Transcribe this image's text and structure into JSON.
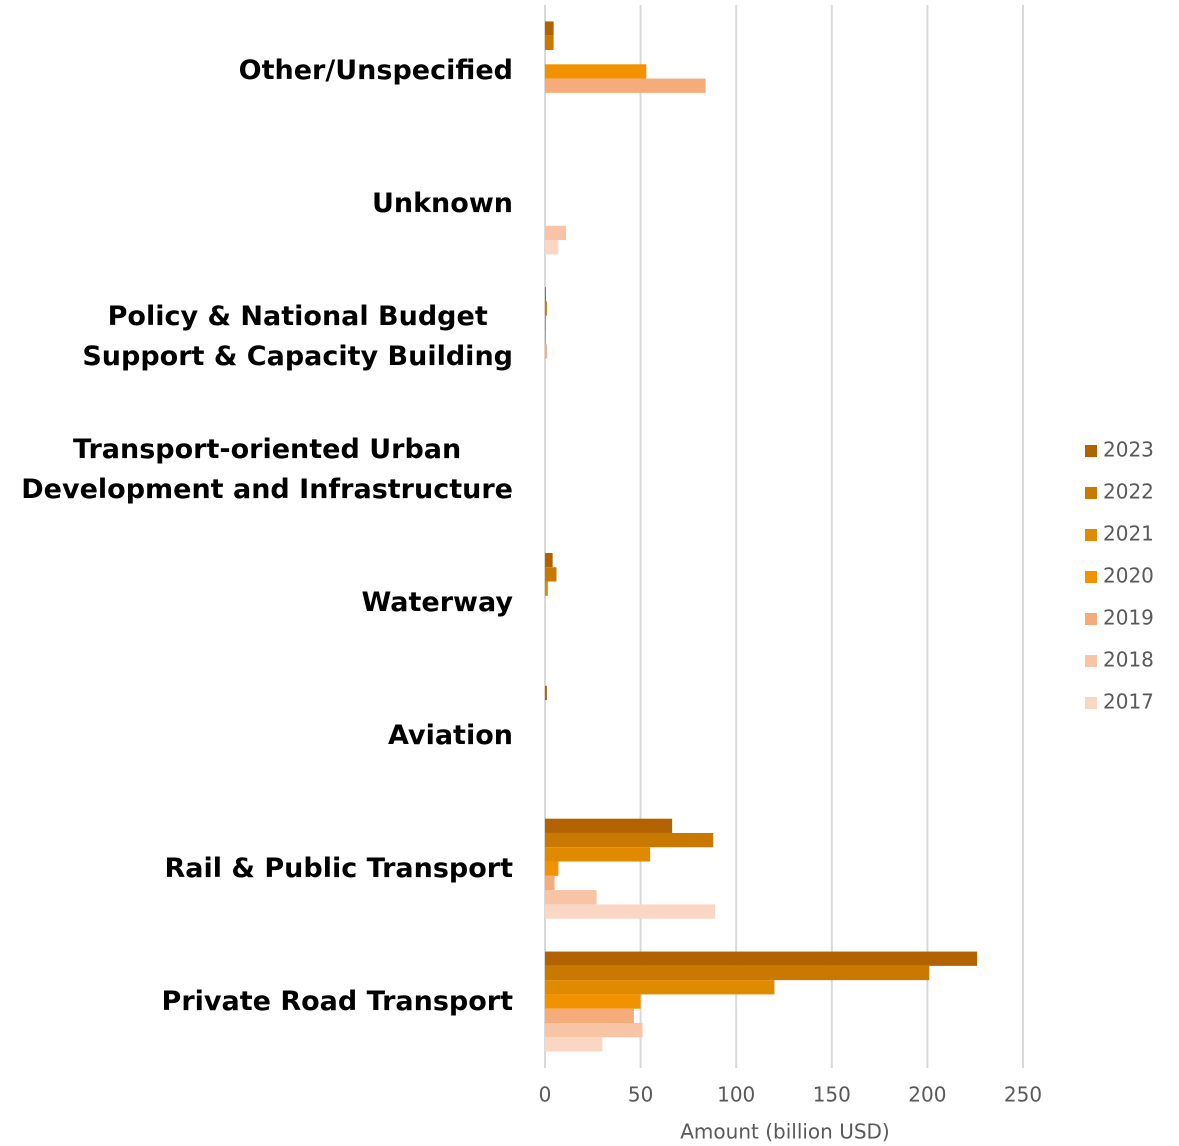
{
  "chart_data": {
    "type": "bar",
    "orientation": "horizontal",
    "categories": [
      "Other/Unspecified",
      "Unknown",
      "Policy & National Budget\nSupport & Capacity Building",
      "Transport-oriented Urban\nDevelopment and Infrastructure",
      "Waterway",
      "Aviation",
      "Rail & Public Transport",
      "Private Road Transport"
    ],
    "series": [
      {
        "name": "2023",
        "color": "#b36200",
        "values": [
          4.5,
          0,
          0.5,
          0,
          4,
          1,
          66.5,
          226
        ]
      },
      {
        "name": "2022",
        "color": "#c97800",
        "values": [
          4.5,
          0,
          1,
          0,
          6,
          0,
          88,
          201
        ]
      },
      {
        "name": "2021",
        "color": "#e08a00",
        "values": [
          0,
          0,
          0.5,
          0,
          1.5,
          0,
          55,
          120
        ]
      },
      {
        "name": "2020",
        "color": "#f39200",
        "values": [
          53,
          0,
          0.5,
          0,
          0,
          0,
          7,
          50
        ]
      },
      {
        "name": "2019",
        "color": "#f5ab7a",
        "values": [
          84,
          0,
          1,
          0,
          0,
          0,
          5,
          46.5
        ]
      },
      {
        "name": "2018",
        "color": "#f8c4a6",
        "values": [
          0,
          11,
          0,
          0,
          0,
          0,
          27,
          51
        ]
      },
      {
        "name": "2017",
        "color": "#fad6c4",
        "values": [
          0,
          7,
          0,
          0,
          0,
          0,
          89,
          30
        ]
      }
    ],
    "xlim": [
      0,
      250
    ],
    "xticks": [
      0,
      50,
      100,
      150,
      200,
      250
    ],
    "grid": true,
    "xlabel": "Amount (billion USD)",
    "legend": "right"
  }
}
